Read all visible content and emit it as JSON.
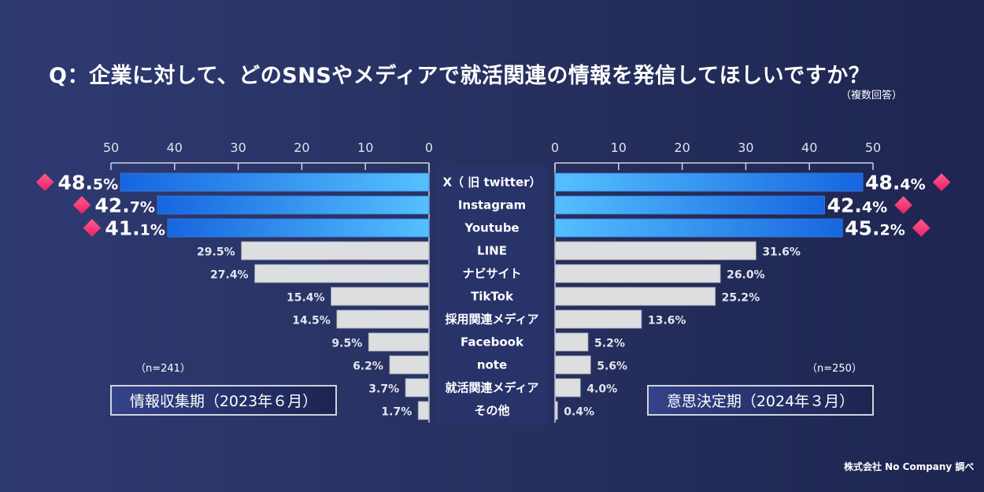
{
  "title": "Q：企業に対して、どのSNSやメディアで就活関連の情報を発信してほしいですか？",
  "subnote": "（複数回答）",
  "credit": "株式会社 No Company 調べ",
  "colors": {
    "highlight_bar": "#1a6fe0",
    "highlight_bar_light": "#55bfff",
    "gray_bar": "#dcdedf",
    "diamond": "#ff3d7f"
  },
  "chart_data": {
    "type": "bar",
    "orientation": "horizontal-butterfly",
    "categories": [
      "X（ 旧 twitter）",
      "Instagram",
      "Youtube",
      "LINE",
      "ナビサイト",
      "TikTok",
      "採用関連メディア",
      "Facebook",
      "note",
      "就活関連メディア",
      "その他"
    ],
    "xlim": [
      0,
      50
    ],
    "ticks": [
      "0",
      "10",
      "20",
      "30",
      "40",
      "50"
    ],
    "series": [
      {
        "name": "情報収集期（2023年６月）",
        "n_label": "（n=241）",
        "side": "left",
        "values": [
          48.5,
          42.7,
          41.1,
          29.5,
          27.4,
          15.4,
          14.5,
          9.5,
          6.2,
          3.7,
          1.7
        ],
        "labels": [
          "48.5%",
          "42.7%",
          "41.1%",
          "29.5%",
          "27.4%",
          "15.4%",
          "14.5%",
          "9.5%",
          "6.2%",
          "3.7%",
          "1.7%"
        ]
      },
      {
        "name": "意思決定期（2024年３月）",
        "n_label": "（n=250）",
        "side": "right",
        "values": [
          48.4,
          42.4,
          45.2,
          31.6,
          26.0,
          25.2,
          13.6,
          5.2,
          5.6,
          4.0,
          0.4
        ],
        "labels": [
          "48.4%",
          "42.4%",
          "45.2%",
          "31.6%",
          "26.0%",
          "25.2%",
          "13.6%",
          "5.2%",
          "5.6%",
          "4.0%",
          "0.4%"
        ]
      }
    ],
    "highlighted_top": 3
  }
}
